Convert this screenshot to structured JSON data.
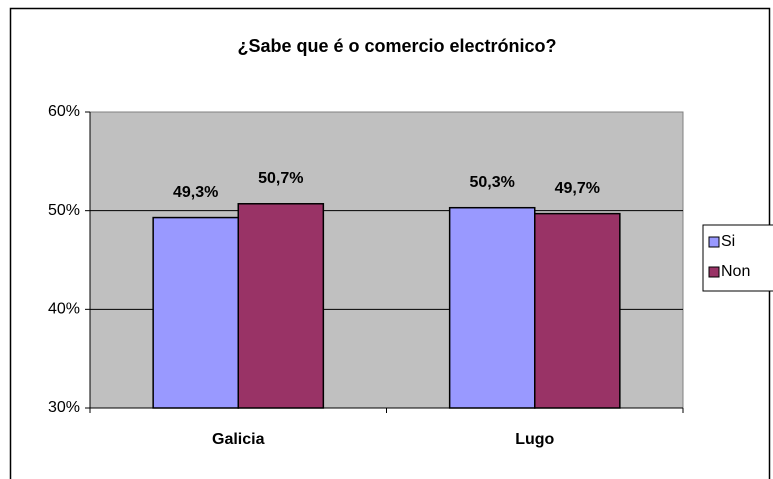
{
  "chart_data": {
    "type": "bar",
    "title": "¿Sabe que é o comercio electrónico?",
    "categories": [
      "Galicia",
      "Lugo"
    ],
    "series": [
      {
        "name": "Si",
        "color": "#9999ff",
        "values": [
          49.3,
          50.3
        ],
        "value_labels": [
          "49,3%",
          "50,3%"
        ]
      },
      {
        "name": "Non",
        "color": "#993366",
        "values": [
          50.7,
          49.7
        ],
        "value_labels": [
          "50,7%",
          "49,7%"
        ]
      }
    ],
    "ylim": [
      30,
      60
    ],
    "yticks": [
      {
        "value": 30,
        "label": "30%"
      },
      {
        "value": 40,
        "label": "40%"
      },
      {
        "value": 50,
        "label": "50%"
      },
      {
        "value": 60,
        "label": "60%"
      }
    ],
    "grid": true,
    "legend": "right"
  }
}
